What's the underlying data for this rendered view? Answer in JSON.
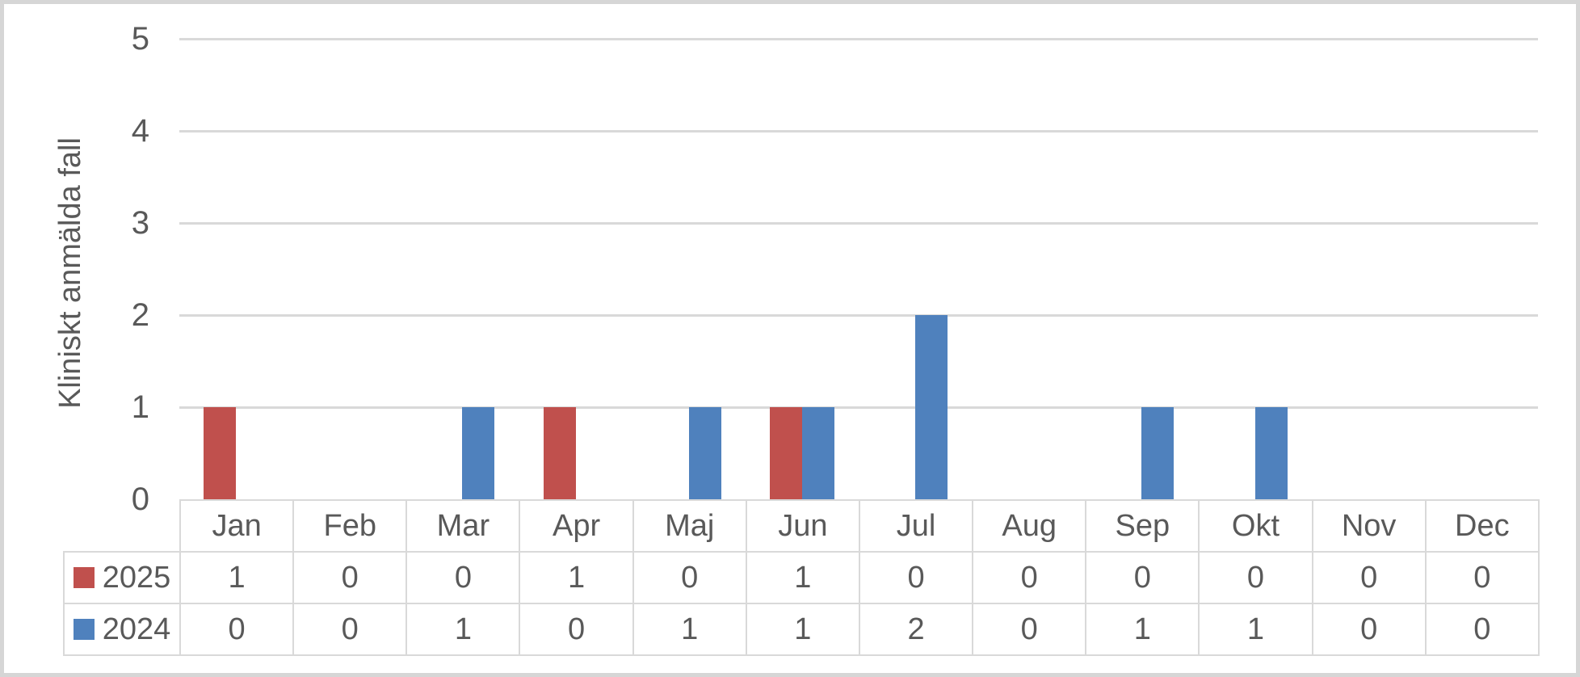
{
  "chart_data": {
    "type": "bar",
    "title": "",
    "ylabel": "Kliniskt anmälda fall",
    "xlabel": "",
    "ylim": [
      0,
      5
    ],
    "ytick_labels": [
      "0",
      "1",
      "2",
      "3",
      "4",
      "5"
    ],
    "grid": true,
    "legend_position": "data-table-left-column",
    "categories": [
      "Jan",
      "Feb",
      "Mar",
      "Apr",
      "Maj",
      "Jun",
      "Jul",
      "Aug",
      "Sep",
      "Okt",
      "Nov",
      "Dec"
    ],
    "series": [
      {
        "name": "2025",
        "color": "#C0504D",
        "values": [
          1,
          0,
          0,
          1,
          0,
          1,
          0,
          0,
          0,
          0,
          0,
          0
        ]
      },
      {
        "name": "2024",
        "color": "#4F81BD",
        "values": [
          0,
          0,
          1,
          0,
          1,
          1,
          2,
          0,
          1,
          1,
          0,
          0
        ]
      }
    ]
  },
  "colors": {
    "gridline": "#D9D9D9",
    "table_border": "#D9D9D9",
    "text": "#595959",
    "frame_border": "#D6D6D6",
    "background": "#FFFFFF"
  }
}
